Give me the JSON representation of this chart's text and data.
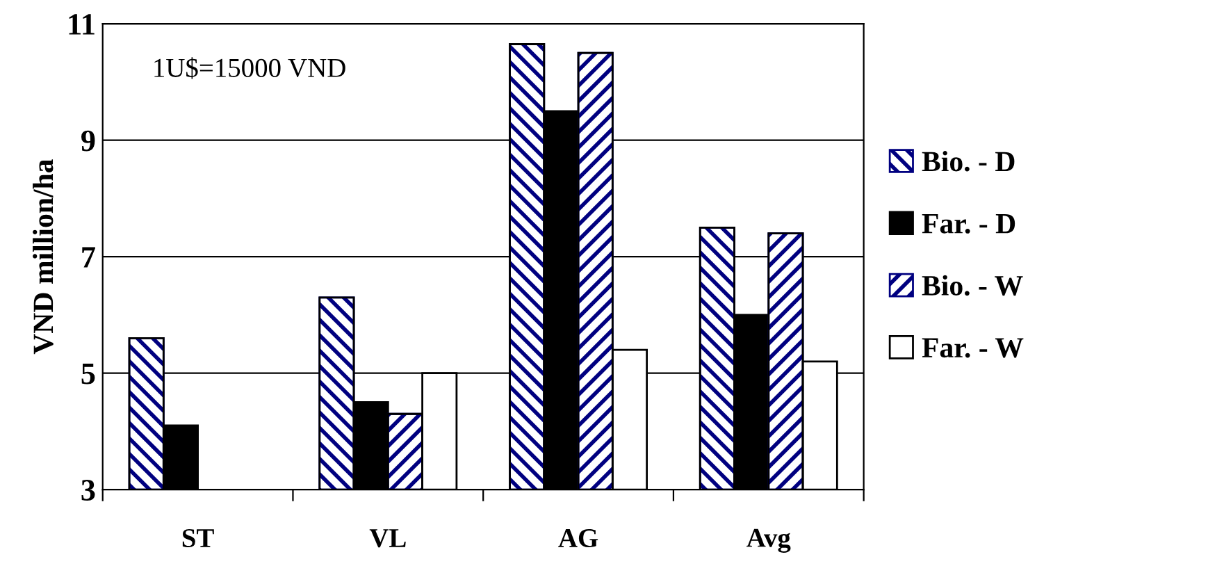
{
  "chart_data": {
    "type": "bar",
    "ylabel": "VND million/ha",
    "categories": [
      "ST",
      "VL",
      "AG",
      "Avg"
    ],
    "series": [
      {
        "name": "Bio. - D",
        "color": "#000080",
        "values": [
          5.6,
          6.3,
          10.65,
          7.5
        ]
      },
      {
        "name": "Far. - D",
        "color": "#000000",
        "values": [
          4.1,
          4.5,
          9.5,
          6.0
        ]
      },
      {
        "name": "Bio. - W",
        "color": "#000080",
        "values": [
          null,
          4.3,
          10.5,
          7.4
        ]
      },
      {
        "name": "Far. - W",
        "color": "#ffffff",
        "values": [
          null,
          5.0,
          5.4,
          5.2
        ]
      }
    ],
    "ylim": [
      3,
      11
    ],
    "yticks": [
      3,
      5,
      7,
      9,
      11
    ],
    "grid": "y",
    "legend": "right",
    "annotations": [
      "1U$=15000 VND"
    ]
  }
}
